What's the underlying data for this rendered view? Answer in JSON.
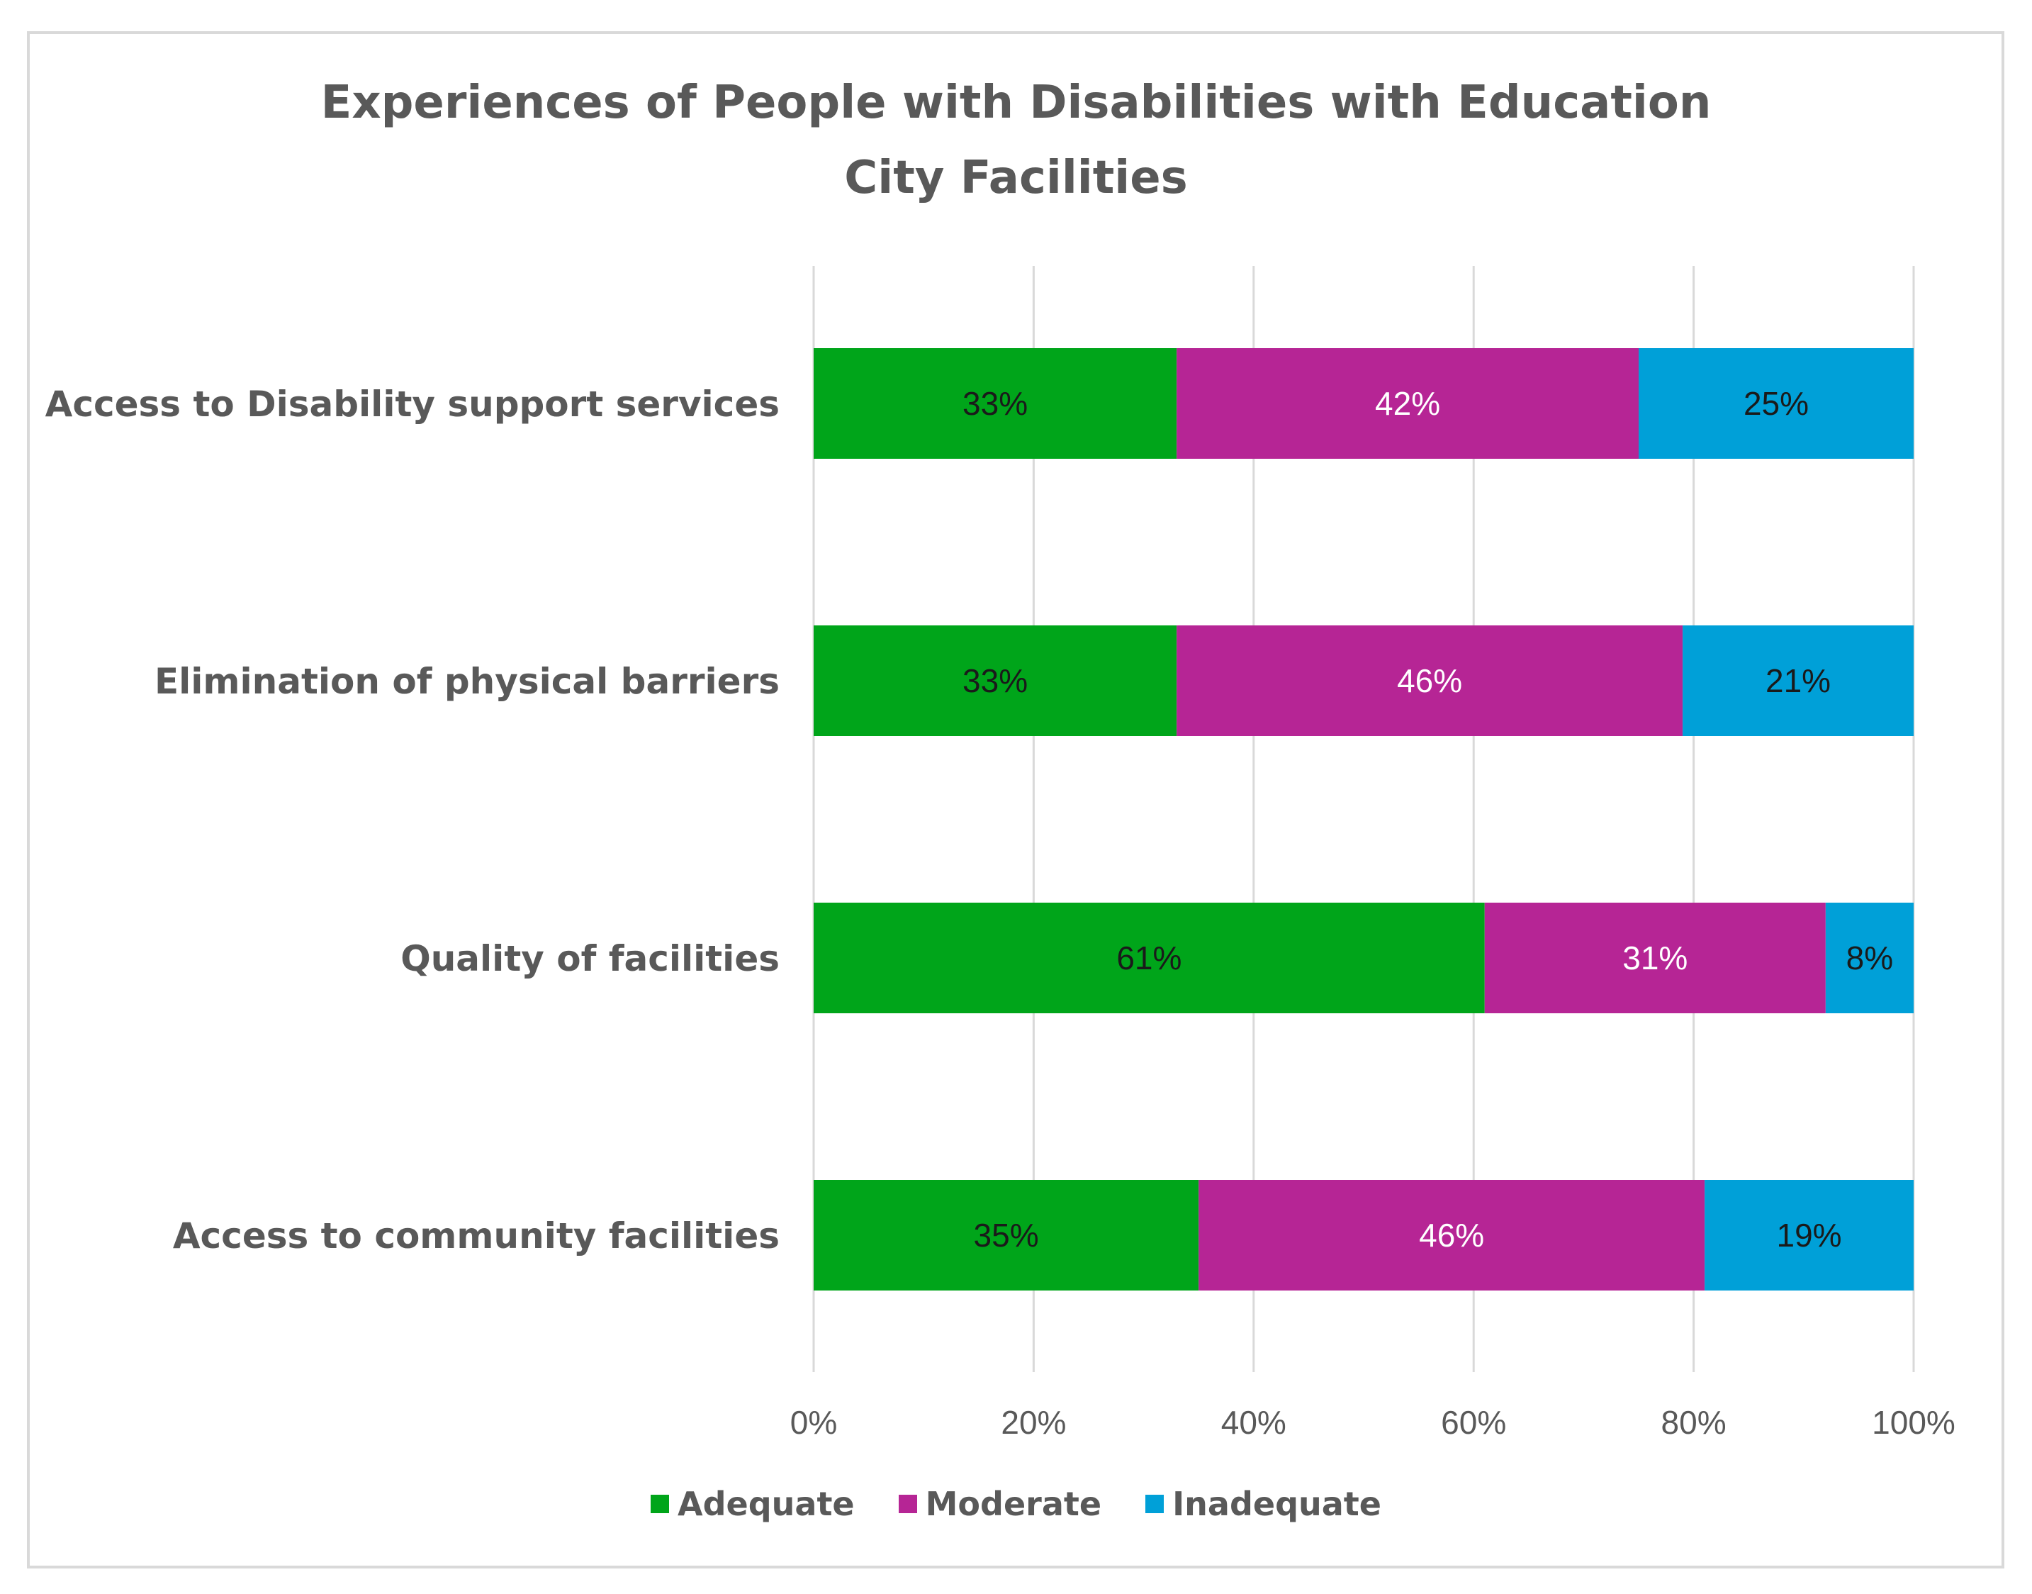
{
  "chart_data": {
    "type": "bar",
    "orientation": "horizontal",
    "stacked": "100%",
    "title": "Experiences of People with Disabilities with Education City Facilities",
    "title_lines": [
      "Experiences of People with Disabilities with Education",
      "City Facilities"
    ],
    "categories": [
      "Access to Disability support services",
      "Elimination of physical barriers",
      "Quality of facilities",
      "Access to community facilities"
    ],
    "series": [
      {
        "name": "Adequate",
        "color": "#00a51a",
        "label_color": "#1a1a1a",
        "values": [
          33,
          33,
          61,
          35
        ]
      },
      {
        "name": "Moderate",
        "color": "#b62595",
        "label_color": "#ffffff",
        "values": [
          42,
          46,
          31,
          46
        ]
      },
      {
        "name": "Inadequate",
        "color": "#00a0d8",
        "label_color": "#1a1a1a",
        "values": [
          25,
          21,
          8,
          19
        ]
      }
    ],
    "xlim": [
      0,
      100
    ],
    "xticks": [
      "0%",
      "20%",
      "40%",
      "60%",
      "80%",
      "100%"
    ],
    "xlabel": "",
    "ylabel": "",
    "grid": true,
    "legend": "bottom-center"
  }
}
